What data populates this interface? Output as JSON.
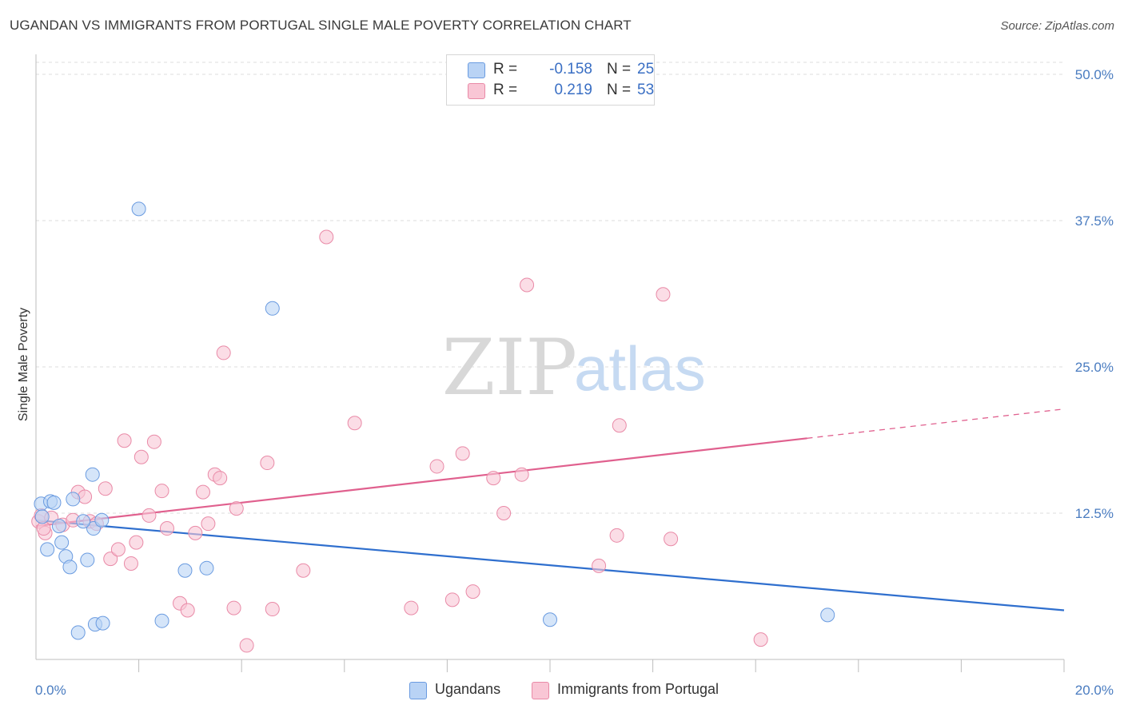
{
  "title": "UGANDAN VS IMMIGRANTS FROM PORTUGAL SINGLE MALE POVERTY CORRELATION CHART",
  "source": "Source: ZipAtlas.com",
  "watermark": {
    "zip": "ZIP",
    "atlas": "atlas"
  },
  "legend": {
    "series1": {
      "r_label": "R =",
      "r_value": "-0.158",
      "n_label": "N =",
      "n_value": "25"
    },
    "series2": {
      "r_label": "R =",
      "r_value": "0.219",
      "n_label": "N =",
      "n_value": "53"
    }
  },
  "bottom_legend": {
    "series1": "Ugandans",
    "series2": "Immigrants from Portugal"
  },
  "colors": {
    "blue_fill": "#b9d3f5",
    "blue_stroke": "#6a9be0",
    "blue_line": "#2f6fce",
    "pink_fill": "#f9c6d5",
    "pink_stroke": "#e98aa7",
    "pink_line": "#e0608e",
    "axis_tick": "#4a7cc0",
    "grid": "#dcdcdc"
  },
  "chart_data": {
    "type": "scatter",
    "title": "UGANDAN VS IMMIGRANTS FROM PORTUGAL SINGLE MALE POVERTY CORRELATION CHART",
    "xlabel": "",
    "ylabel": "Single Male Poverty",
    "xlim": [
      0,
      20
    ],
    "ylim": [
      0,
      50
    ],
    "x_tick_labels": [
      "0.0%",
      "20.0%"
    ],
    "y_ticks": [
      12.5,
      25.0,
      37.5,
      50.0
    ],
    "y_tick_labels": [
      "12.5%",
      "25.0%",
      "37.5%",
      "50.0%"
    ],
    "series": [
      {
        "name": "Ugandans",
        "r": -0.158,
        "n": 25,
        "points": [
          [
            0.1,
            13.3
          ],
          [
            0.12,
            12.2
          ],
          [
            0.22,
            9.4
          ],
          [
            0.28,
            13.5
          ],
          [
            0.35,
            13.4
          ],
          [
            0.45,
            11.4
          ],
          [
            0.5,
            10.0
          ],
          [
            0.58,
            8.8
          ],
          [
            0.66,
            7.9
          ],
          [
            0.72,
            13.7
          ],
          [
            0.82,
            2.3
          ],
          [
            1.0,
            8.5
          ],
          [
            1.1,
            15.8
          ],
          [
            1.15,
            3.0
          ],
          [
            1.3,
            3.1
          ],
          [
            1.12,
            11.2
          ],
          [
            1.28,
            11.9
          ],
          [
            0.92,
            11.8
          ],
          [
            2.0,
            38.5
          ],
          [
            2.45,
            3.3
          ],
          [
            2.9,
            7.6
          ],
          [
            3.32,
            7.8
          ],
          [
            4.6,
            30.0
          ],
          [
            10.0,
            3.4
          ],
          [
            15.4,
            3.8
          ]
        ],
        "trend": {
          "x": [
            0,
            20
          ],
          "y": [
            11.9,
            4.2
          ]
        }
      },
      {
        "name": "Immigrants from Portugal",
        "r": 0.219,
        "n": 53,
        "points": [
          [
            0.05,
            11.8
          ],
          [
            0.1,
            12.3
          ],
          [
            0.18,
            10.8
          ],
          [
            0.3,
            12.1
          ],
          [
            0.52,
            11.5
          ],
          [
            0.72,
            11.9
          ],
          [
            0.82,
            14.3
          ],
          [
            0.95,
            13.9
          ],
          [
            1.05,
            11.8
          ],
          [
            1.18,
            11.6
          ],
          [
            1.35,
            14.6
          ],
          [
            1.45,
            8.6
          ],
          [
            1.6,
            9.4
          ],
          [
            1.72,
            18.7
          ],
          [
            1.85,
            8.2
          ],
          [
            1.95,
            10.0
          ],
          [
            2.05,
            17.3
          ],
          [
            2.2,
            12.3
          ],
          [
            2.3,
            18.6
          ],
          [
            2.45,
            14.4
          ],
          [
            2.55,
            11.2
          ],
          [
            2.8,
            4.8
          ],
          [
            2.95,
            4.2
          ],
          [
            3.1,
            10.8
          ],
          [
            3.25,
            14.3
          ],
          [
            3.35,
            11.6
          ],
          [
            3.48,
            15.8
          ],
          [
            3.58,
            15.5
          ],
          [
            3.65,
            26.2
          ],
          [
            3.85,
            4.4
          ],
          [
            3.9,
            12.9
          ],
          [
            4.1,
            1.2
          ],
          [
            4.5,
            16.8
          ],
          [
            4.6,
            4.3
          ],
          [
            5.2,
            7.6
          ],
          [
            5.65,
            36.1
          ],
          [
            6.2,
            20.2
          ],
          [
            7.3,
            4.4
          ],
          [
            7.8,
            16.5
          ],
          [
            8.1,
            5.1
          ],
          [
            8.3,
            17.6
          ],
          [
            8.5,
            5.8
          ],
          [
            8.9,
            15.5
          ],
          [
            9.1,
            12.5
          ],
          [
            9.45,
            15.8
          ],
          [
            9.55,
            32.0
          ],
          [
            10.95,
            8.0
          ],
          [
            11.3,
            10.6
          ],
          [
            11.35,
            20.0
          ],
          [
            12.2,
            31.2
          ],
          [
            12.35,
            10.3
          ],
          [
            14.1,
            1.7
          ],
          [
            0.15,
            11.2
          ]
        ],
        "trend": {
          "x": [
            0,
            15.0
          ],
          "y": [
            11.4,
            18.9
          ],
          "dashed_to": [
            20,
            21.4
          ]
        }
      }
    ]
  }
}
